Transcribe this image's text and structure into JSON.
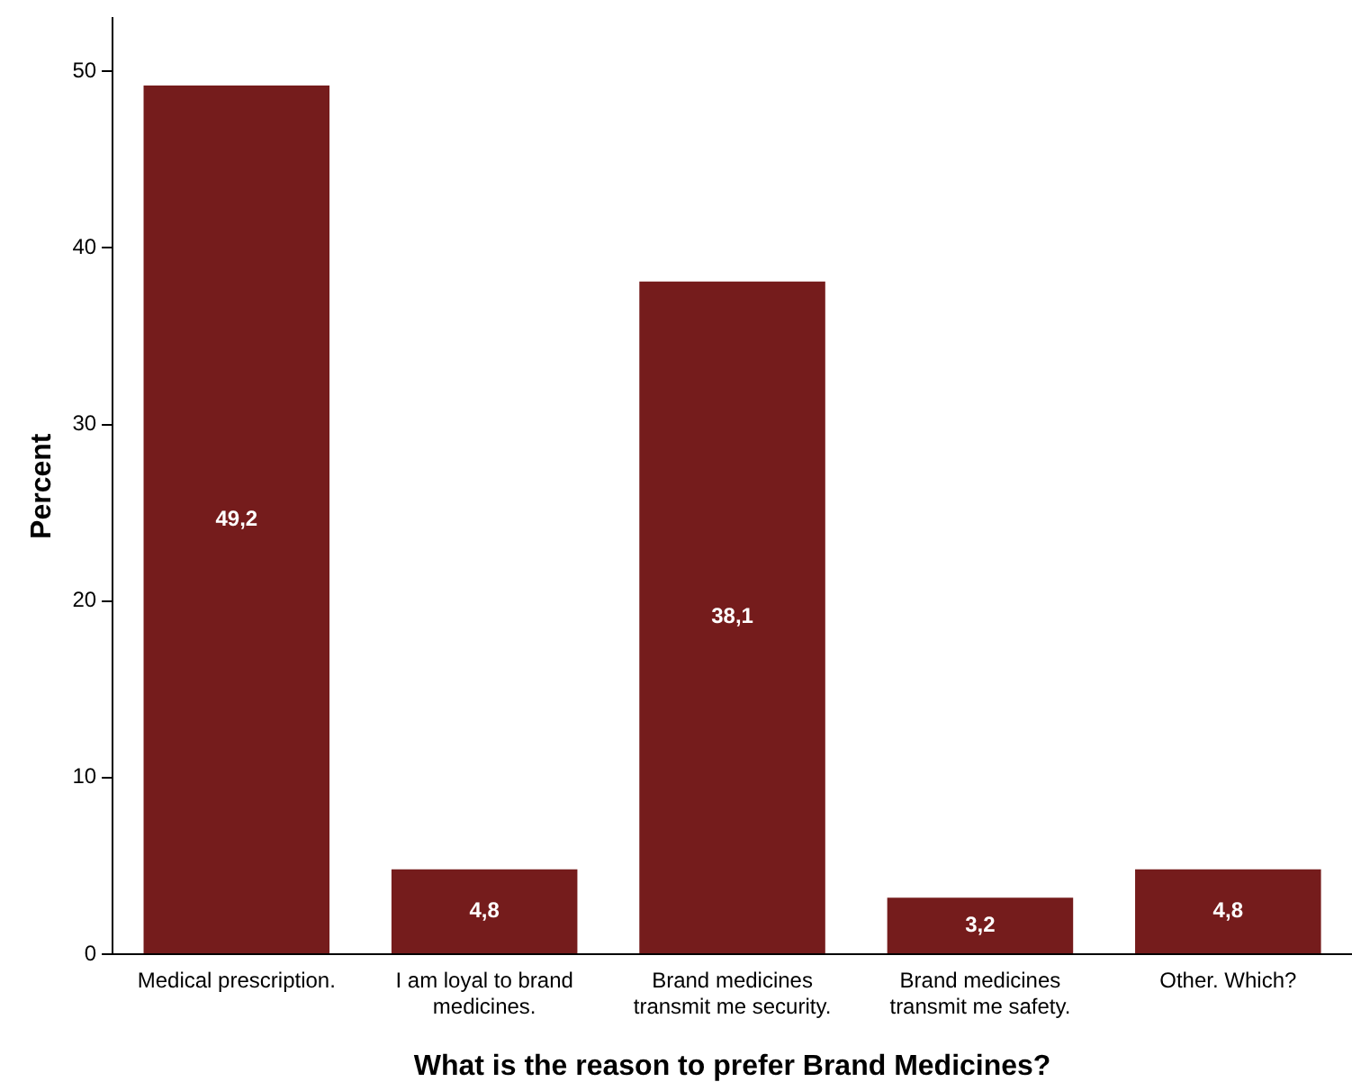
{
  "chart_data": {
    "type": "bar",
    "xlabel": "What is the reason to prefer Brand Medicines?",
    "ylabel": "Percent",
    "categories": [
      "Medical prescription.",
      "I am loyal to brand medicines.",
      "Brand medicines transmit me security.",
      "Brand medicines transmit me safety.",
      "Other. Which?"
    ],
    "values": [
      49.2,
      4.8,
      38.1,
      3.2,
      4.8
    ],
    "value_labels": [
      "49,2",
      "4,8",
      "38,1",
      "3,2",
      "4,8"
    ],
    "color": "#751c1c",
    "ylim": [
      0,
      53
    ],
    "yticks": [
      0,
      10,
      20,
      30,
      40,
      50
    ],
    "grid": false,
    "legend": false
  }
}
